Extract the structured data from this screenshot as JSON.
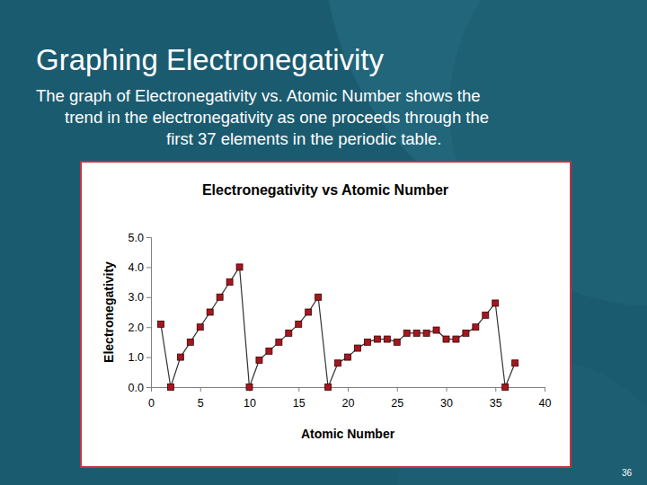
{
  "slide": {
    "title": "Graphing Electronegativity",
    "text_lines": [
      "The graph of Electronegativity vs. Atomic Number shows the",
      "trend in the electronegativity as one proceeds through the",
      "first 37 elements in the periodic table."
    ],
    "page_number": "36"
  },
  "chart_data": {
    "type": "line",
    "title": "Electronegativity vs Atomic Number",
    "x_label": "Atomic Number",
    "y_label": "Electronegativity",
    "x": [
      1,
      2,
      3,
      4,
      5,
      6,
      7,
      8,
      9,
      10,
      11,
      12,
      13,
      14,
      15,
      16,
      17,
      18,
      19,
      20,
      21,
      22,
      23,
      24,
      25,
      26,
      27,
      28,
      29,
      30,
      31,
      32,
      33,
      34,
      35,
      36,
      37
    ],
    "values": [
      2.1,
      0,
      1.0,
      1.5,
      2.0,
      2.5,
      3.0,
      3.5,
      4.0,
      0,
      0.9,
      1.2,
      1.5,
      1.8,
      2.1,
      2.5,
      3.0,
      0,
      0.8,
      1.0,
      1.3,
      1.5,
      1.6,
      1.6,
      1.5,
      1.8,
      1.8,
      1.8,
      1.9,
      1.6,
      1.6,
      1.8,
      2.0,
      2.4,
      2.8,
      0,
      0.8
    ],
    "color": "#a3171f",
    "marker": "square",
    "line_style": "solid",
    "xlim": [
      0,
      40
    ],
    "xticks": [
      0,
      5,
      10,
      15,
      20,
      25,
      30,
      35,
      40
    ],
    "ylim": [
      0,
      5
    ],
    "yticks": [
      {
        "value": 0,
        "label": "0.0"
      },
      {
        "value": 1,
        "label": "1.0"
      },
      {
        "value": 2,
        "label": "2.0"
      },
      {
        "value": 3,
        "label": "3.0"
      },
      {
        "value": 4,
        "label": "4.0"
      },
      {
        "value": 5,
        "label": "5.0"
      }
    ],
    "grid": false
  }
}
